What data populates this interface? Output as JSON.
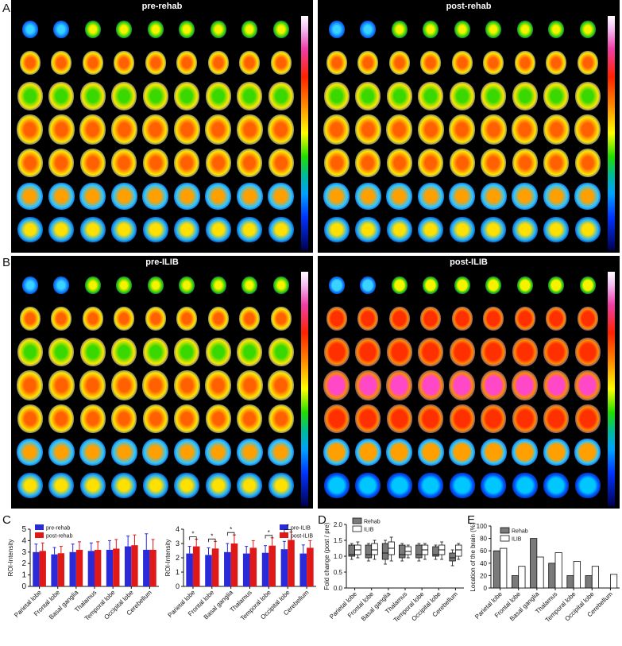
{
  "panel_letters": {
    "A": "A",
    "B": "B",
    "C": "C",
    "D": "D",
    "E": "E"
  },
  "scans": {
    "pre_rehab": "pre-rehab",
    "post_rehab": "post-rehab",
    "pre_ilib": "pre-ILIB",
    "post_ilib": "post-ILIB"
  },
  "colors": {
    "blue": "#2a2ad8",
    "red": "#e01818",
    "dark_gray": "#7a7a7a",
    "white": "#ffffff"
  },
  "chart_data": [
    {
      "type": "bar",
      "panel": "C-left",
      "ylabel": "ROI-Intensity",
      "ylim": [
        0,
        5
      ],
      "yticks": [
        0,
        1,
        2,
        3,
        4,
        5
      ],
      "categories": [
        "Parietal lobe",
        "Frontal lobe",
        "Basal ganglia",
        "Thalamus",
        "Temporal lobe",
        "Occipital lobe",
        "Cerebellum"
      ],
      "series": [
        {
          "name": "pre-rehab",
          "values": [
            3.0,
            2.8,
            3.0,
            3.1,
            3.2,
            3.5,
            3.2
          ],
          "errors": [
            0.7,
            0.6,
            0.7,
            0.7,
            0.8,
            0.9,
            1.4
          ]
        },
        {
          "name": "post-rehab",
          "values": [
            3.1,
            2.9,
            3.2,
            3.2,
            3.3,
            3.6,
            3.2
          ],
          "errors": [
            0.7,
            0.6,
            0.7,
            0.7,
            0.8,
            0.9,
            0.9
          ]
        }
      ],
      "legend": "top-left"
    },
    {
      "type": "bar",
      "panel": "C-right",
      "ylabel": "ROI-Intensity",
      "ylim": [
        0,
        4
      ],
      "yticks": [
        0,
        1,
        2,
        3,
        4
      ],
      "categories": [
        "Parietal lobe",
        "Frontal lobe",
        "Basal ganglia",
        "Thalamus",
        "Temporal lobe",
        "Occipital lobe",
        "Cerebellum"
      ],
      "series": [
        {
          "name": "pre-ILIB",
          "values": [
            2.3,
            2.2,
            2.4,
            2.3,
            2.35,
            2.6,
            2.3
          ],
          "errors": [
            0.5,
            0.5,
            0.6,
            0.5,
            0.5,
            0.55,
            0.6
          ]
        },
        {
          "name": "post-ILIB",
          "values": [
            2.8,
            2.65,
            3.0,
            2.7,
            2.85,
            3.25,
            2.7
          ],
          "errors": [
            0.5,
            0.5,
            0.6,
            0.5,
            0.55,
            0.55,
            0.5
          ]
        }
      ],
      "significance": [
        "*",
        "*",
        "*",
        "",
        "*",
        "*",
        ""
      ],
      "legend": "top-right"
    },
    {
      "type": "box",
      "panel": "D",
      "ylabel": "Fold change (post / pre)",
      "ylim": [
        0,
        2.0
      ],
      "yticks": [
        "0.0",
        "0.5",
        "1.0",
        "1.5",
        "2.0"
      ],
      "categories": [
        "Parietal lobe",
        "Frontal lobe",
        "Basal ganglia",
        "Thalamus",
        "Temporal lobe",
        "Occipital lobe",
        "Cerebellum"
      ],
      "series": [
        {
          "name": "Rehab",
          "boxes": [
            {
              "min": 0.9,
              "q1": 1.0,
              "median": 1.05,
              "q3": 1.35,
              "max": 1.4
            },
            {
              "min": 0.85,
              "q1": 0.95,
              "median": 1.05,
              "q3": 1.35,
              "max": 1.4
            },
            {
              "min": 0.75,
              "q1": 0.9,
              "median": 1.1,
              "q3": 1.4,
              "max": 1.5
            },
            {
              "min": 0.85,
              "q1": 0.95,
              "median": 1.05,
              "q3": 1.35,
              "max": 1.4
            },
            {
              "min": 0.85,
              "q1": 0.95,
              "median": 1.05,
              "q3": 1.35,
              "max": 1.4
            },
            {
              "min": 0.9,
              "q1": 1.0,
              "median": 1.05,
              "q3": 1.3,
              "max": 1.35
            },
            {
              "min": 0.7,
              "q1": 0.85,
              "median": 0.95,
              "q3": 1.1,
              "max": 1.2
            }
          ]
        },
        {
          "name": "ILIB",
          "boxes": [
            {
              "min": 0.95,
              "q1": 1.05,
              "median": 1.2,
              "q3": 1.35,
              "max": 1.45
            },
            {
              "min": 0.9,
              "q1": 1.05,
              "median": 1.2,
              "q3": 1.4,
              "max": 1.5
            },
            {
              "min": 0.85,
              "q1": 1.05,
              "median": 1.25,
              "q3": 1.45,
              "max": 1.6
            },
            {
              "min": 0.95,
              "q1": 1.05,
              "median": 1.15,
              "q3": 1.3,
              "max": 1.35
            },
            {
              "min": 0.9,
              "q1": 1.05,
              "median": 1.2,
              "q3": 1.35,
              "max": 1.4
            },
            {
              "min": 0.9,
              "q1": 1.05,
              "median": 1.2,
              "q3": 1.35,
              "max": 1.45
            },
            {
              "min": 0.9,
              "q1": 1.0,
              "median": 1.2,
              "q3": 1.35,
              "max": 1.4
            }
          ]
        }
      ],
      "legend": "top-left"
    },
    {
      "type": "bar",
      "panel": "E",
      "ylabel": "Location of the brain (%)",
      "ylim": [
        0,
        100
      ],
      "yticks": [
        0,
        20,
        40,
        60,
        80,
        100
      ],
      "categories": [
        "Parietal lobe",
        "Frontal lobe",
        "Basal ganglia",
        "Thalamus",
        "Temporal lobe",
        "Occipital lobe",
        "Cerebellum"
      ],
      "series": [
        {
          "name": "Rehab",
          "values": [
            60,
            20,
            80,
            40,
            20,
            20,
            0
          ]
        },
        {
          "name": "ILIB",
          "values": [
            64,
            35,
            50,
            57,
            43,
            35,
            22
          ]
        }
      ],
      "legend": "top-left"
    }
  ]
}
